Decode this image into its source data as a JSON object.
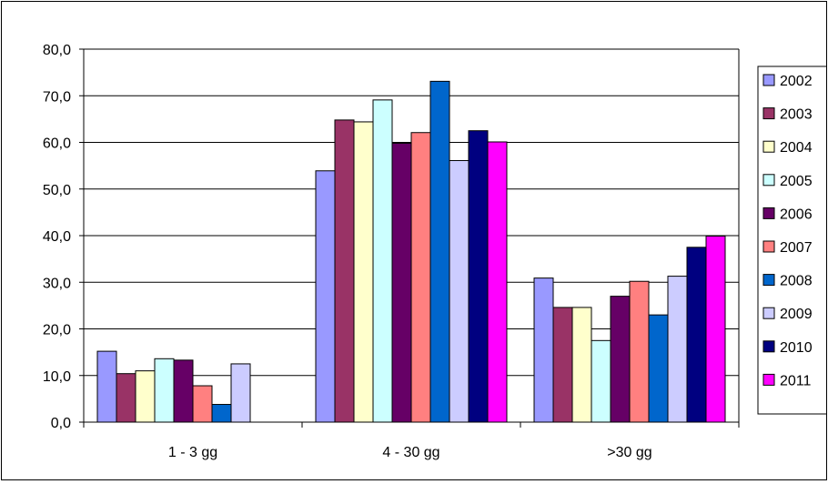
{
  "chart_data": {
    "type": "bar",
    "title": "",
    "xlabel": "",
    "ylabel": "",
    "ylim": [
      0,
      80
    ],
    "yticks": [
      "0,0",
      "10,0",
      "20,0",
      "30,0",
      "40,0",
      "50,0",
      "60,0",
      "70,0",
      "80,0"
    ],
    "grid": true,
    "legend_position": "right",
    "categories": [
      "1 - 3 gg",
      "4 - 30 gg",
      ">30 gg"
    ],
    "series": [
      {
        "name": "2002",
        "color": "#9999FF",
        "values": [
          15.2,
          53.9,
          30.9
        ]
      },
      {
        "name": "2003",
        "color": "#993366",
        "values": [
          10.4,
          64.8,
          24.6
        ]
      },
      {
        "name": "2004",
        "color": "#FFFFCC",
        "values": [
          11.0,
          64.4,
          24.6
        ]
      },
      {
        "name": "2005",
        "color": "#CCFFFF",
        "values": [
          13.6,
          69.1,
          17.5
        ]
      },
      {
        "name": "2006",
        "color": "#660066",
        "values": [
          13.3,
          59.8,
          27.0
        ]
      },
      {
        "name": "2007",
        "color": "#FF8080",
        "values": [
          7.8,
          62.1,
          30.2
        ]
      },
      {
        "name": "2008",
        "color": "#0066CC",
        "values": [
          3.8,
          73.1,
          23.0
        ]
      },
      {
        "name": "2009",
        "color": "#CCCCFF",
        "values": [
          12.5,
          56.1,
          31.3
        ]
      },
      {
        "name": "2010",
        "color": "#000080",
        "values": [
          null,
          62.5,
          37.5
        ]
      },
      {
        "name": "2011",
        "color": "#FF00FF",
        "values": [
          null,
          60.1,
          39.9
        ]
      }
    ]
  }
}
